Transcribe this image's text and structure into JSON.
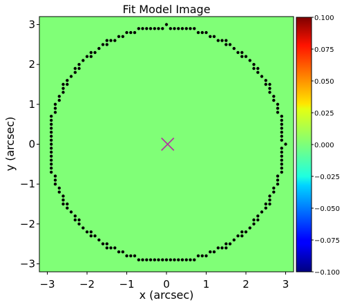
{
  "chart_data": {
    "type": "heatmap",
    "title": "Fit Model Image",
    "xlabel": "x (arcsec)",
    "ylabel": "y (arcsec)",
    "xlim": [
      -3.2,
      3.2
    ],
    "ylim": [
      -3.2,
      3.2
    ],
    "x_ticks": [
      -3,
      -2,
      -1,
      0,
      1,
      2,
      3
    ],
    "y_ticks": [
      -3,
      -2,
      -1,
      0,
      1,
      2,
      3
    ],
    "x_tick_labels": [
      "−3",
      "−2",
      "−1",
      "0",
      "1",
      "2",
      "3"
    ],
    "y_tick_labels": [
      "−3",
      "−2",
      "−1",
      "0",
      "1",
      "2",
      "3"
    ],
    "image_value": 0.0,
    "image_color": "#80ff77",
    "mask_border": {
      "radius": 2.95,
      "marker": "dot",
      "color": "#000000"
    },
    "centre_marker": {
      "x": 0.03,
      "y": 0.0,
      "marker": "x",
      "color": "#b03a9d"
    },
    "colorbar": {
      "colormap": "jet",
      "vmin": -0.1,
      "vmax": 0.1,
      "ticks": [
        0.1,
        0.075,
        0.05,
        0.025,
        0.0,
        -0.025,
        -0.05,
        -0.075,
        -0.1
      ],
      "tick_labels": [
        "0.100",
        "0.075",
        "0.050",
        "0.025",
        "0.000",
        "−0.025",
        "−0.050",
        "−0.075",
        "−0.100"
      ]
    }
  }
}
